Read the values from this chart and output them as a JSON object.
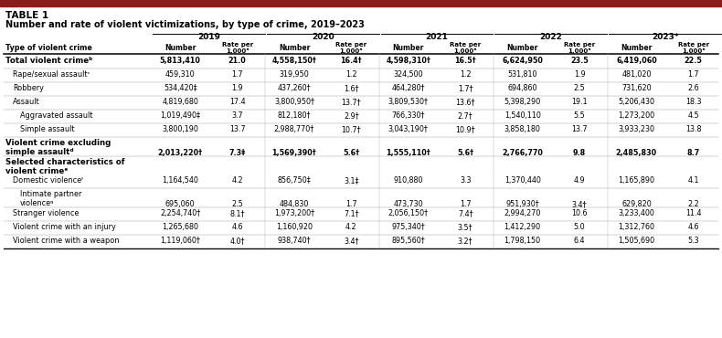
{
  "table_label": "TABLE 1",
  "title": "Number and rate of violent victimizations, by type of crime, 2019–2023",
  "years": [
    "2019",
    "2020",
    "2021",
    "2022",
    "2023*"
  ],
  "row_label_col": "Type of violent crime",
  "rows": [
    {
      "label": "Total violent crimeᵇ",
      "bold": true,
      "indent": 0,
      "multiline": false,
      "values": [
        "5,813,410",
        "21.0",
        "4,558,150†",
        "16.4†",
        "4,598,310†",
        "16.5†",
        "6,624,950",
        "23.5",
        "6,419,060",
        "22.5"
      ]
    },
    {
      "label": "Rape/sexual assaultᶜ",
      "bold": false,
      "indent": 1,
      "multiline": false,
      "values": [
        "459,310",
        "1.7",
        "319,950",
        "1.2",
        "324,500",
        "1.2",
        "531,810",
        "1.9",
        "481,020",
        "1.7"
      ]
    },
    {
      "label": "Robbery",
      "bold": false,
      "indent": 1,
      "multiline": false,
      "values": [
        "534,420‡",
        "1.9",
        "437,260†",
        "1.6†",
        "464,280†",
        "1.7†",
        "694,860",
        "2.5",
        "731,620",
        "2.6"
      ]
    },
    {
      "label": "Assault",
      "bold": false,
      "indent": 1,
      "multiline": false,
      "values": [
        "4,819,680",
        "17.4",
        "3,800,950†",
        "13.7†",
        "3,809,530†",
        "13.6†",
        "5,398,290",
        "19.1",
        "5,206,430",
        "18.3"
      ]
    },
    {
      "label": "Aggravated assault",
      "bold": false,
      "indent": 2,
      "multiline": false,
      "values": [
        "1,019,490‡",
        "3.7",
        "812,180†",
        "2.9†",
        "766,330†",
        "2.7†",
        "1,540,110",
        "5.5",
        "1,273,200",
        "4.5"
      ]
    },
    {
      "label": "Simple assault",
      "bold": false,
      "indent": 2,
      "multiline": false,
      "values": [
        "3,800,190",
        "13.7",
        "2,988,770†",
        "10.7†",
        "3,043,190†",
        "10.9†",
        "3,858,180",
        "13.7",
        "3,933,230",
        "13.8"
      ]
    },
    {
      "label": "Violent crime excluding\nsimple assaultᵈ",
      "bold": true,
      "indent": 0,
      "multiline": true,
      "values": [
        "2,013,220†",
        "7.3‡",
        "1,569,390†",
        "5.6†",
        "1,555,110†",
        "5.6†",
        "2,766,770",
        "9.8",
        "2,485,830",
        "8.7"
      ]
    },
    {
      "label": "Selected characteristics of\nviolent crimeᵉ",
      "bold": true,
      "indent": 0,
      "multiline": true,
      "values": [
        "",
        "",
        "",
        "",
        "",
        "",
        "",
        "",
        "",
        ""
      ]
    },
    {
      "label": "Domestic violenceᶠ",
      "bold": false,
      "indent": 1,
      "multiline": false,
      "values": [
        "1,164,540",
        "4.2",
        "856,750‡",
        "3.1‡",
        "910,880",
        "3.3",
        "1,370,440",
        "4.9",
        "1,165,890",
        "4.1"
      ]
    },
    {
      "label": "Intimate partner\nviolenceᵍ",
      "bold": false,
      "indent": 2,
      "multiline": true,
      "values": [
        "695,060",
        "2.5",
        "484,830",
        "1.7",
        "473,730",
        "1.7",
        "951,930†",
        "3.4†",
        "629,820",
        "2.2"
      ]
    },
    {
      "label": "Stranger violence",
      "bold": false,
      "indent": 1,
      "multiline": false,
      "values": [
        "2,254,740†",
        "8.1†",
        "1,973,200†",
        "7.1†",
        "2,056,150†",
        "7.4†",
        "2,994,270",
        "10.6",
        "3,233,400",
        "11.4"
      ]
    },
    {
      "label": "Violent crime with an injury",
      "bold": false,
      "indent": 1,
      "multiline": false,
      "values": [
        "1,265,680",
        "4.6",
        "1,160,920",
        "4.2",
        "975,340†",
        "3.5†",
        "1,412,290",
        "5.0",
        "1,312,760",
        "4.6"
      ]
    },
    {
      "label": "Violent crime with a weapon",
      "bold": false,
      "indent": 1,
      "multiline": false,
      "values": [
        "1,119,060†",
        "4.0†",
        "938,740†",
        "3.4†",
        "895,560†",
        "3.2†",
        "1,798,150",
        "6.4",
        "1,505,690",
        "5.3"
      ]
    }
  ],
  "top_bar_color": "#8B1A1A",
  "bg_color": "#ffffff",
  "text_color": "#000000",
  "line_color": "#000000"
}
